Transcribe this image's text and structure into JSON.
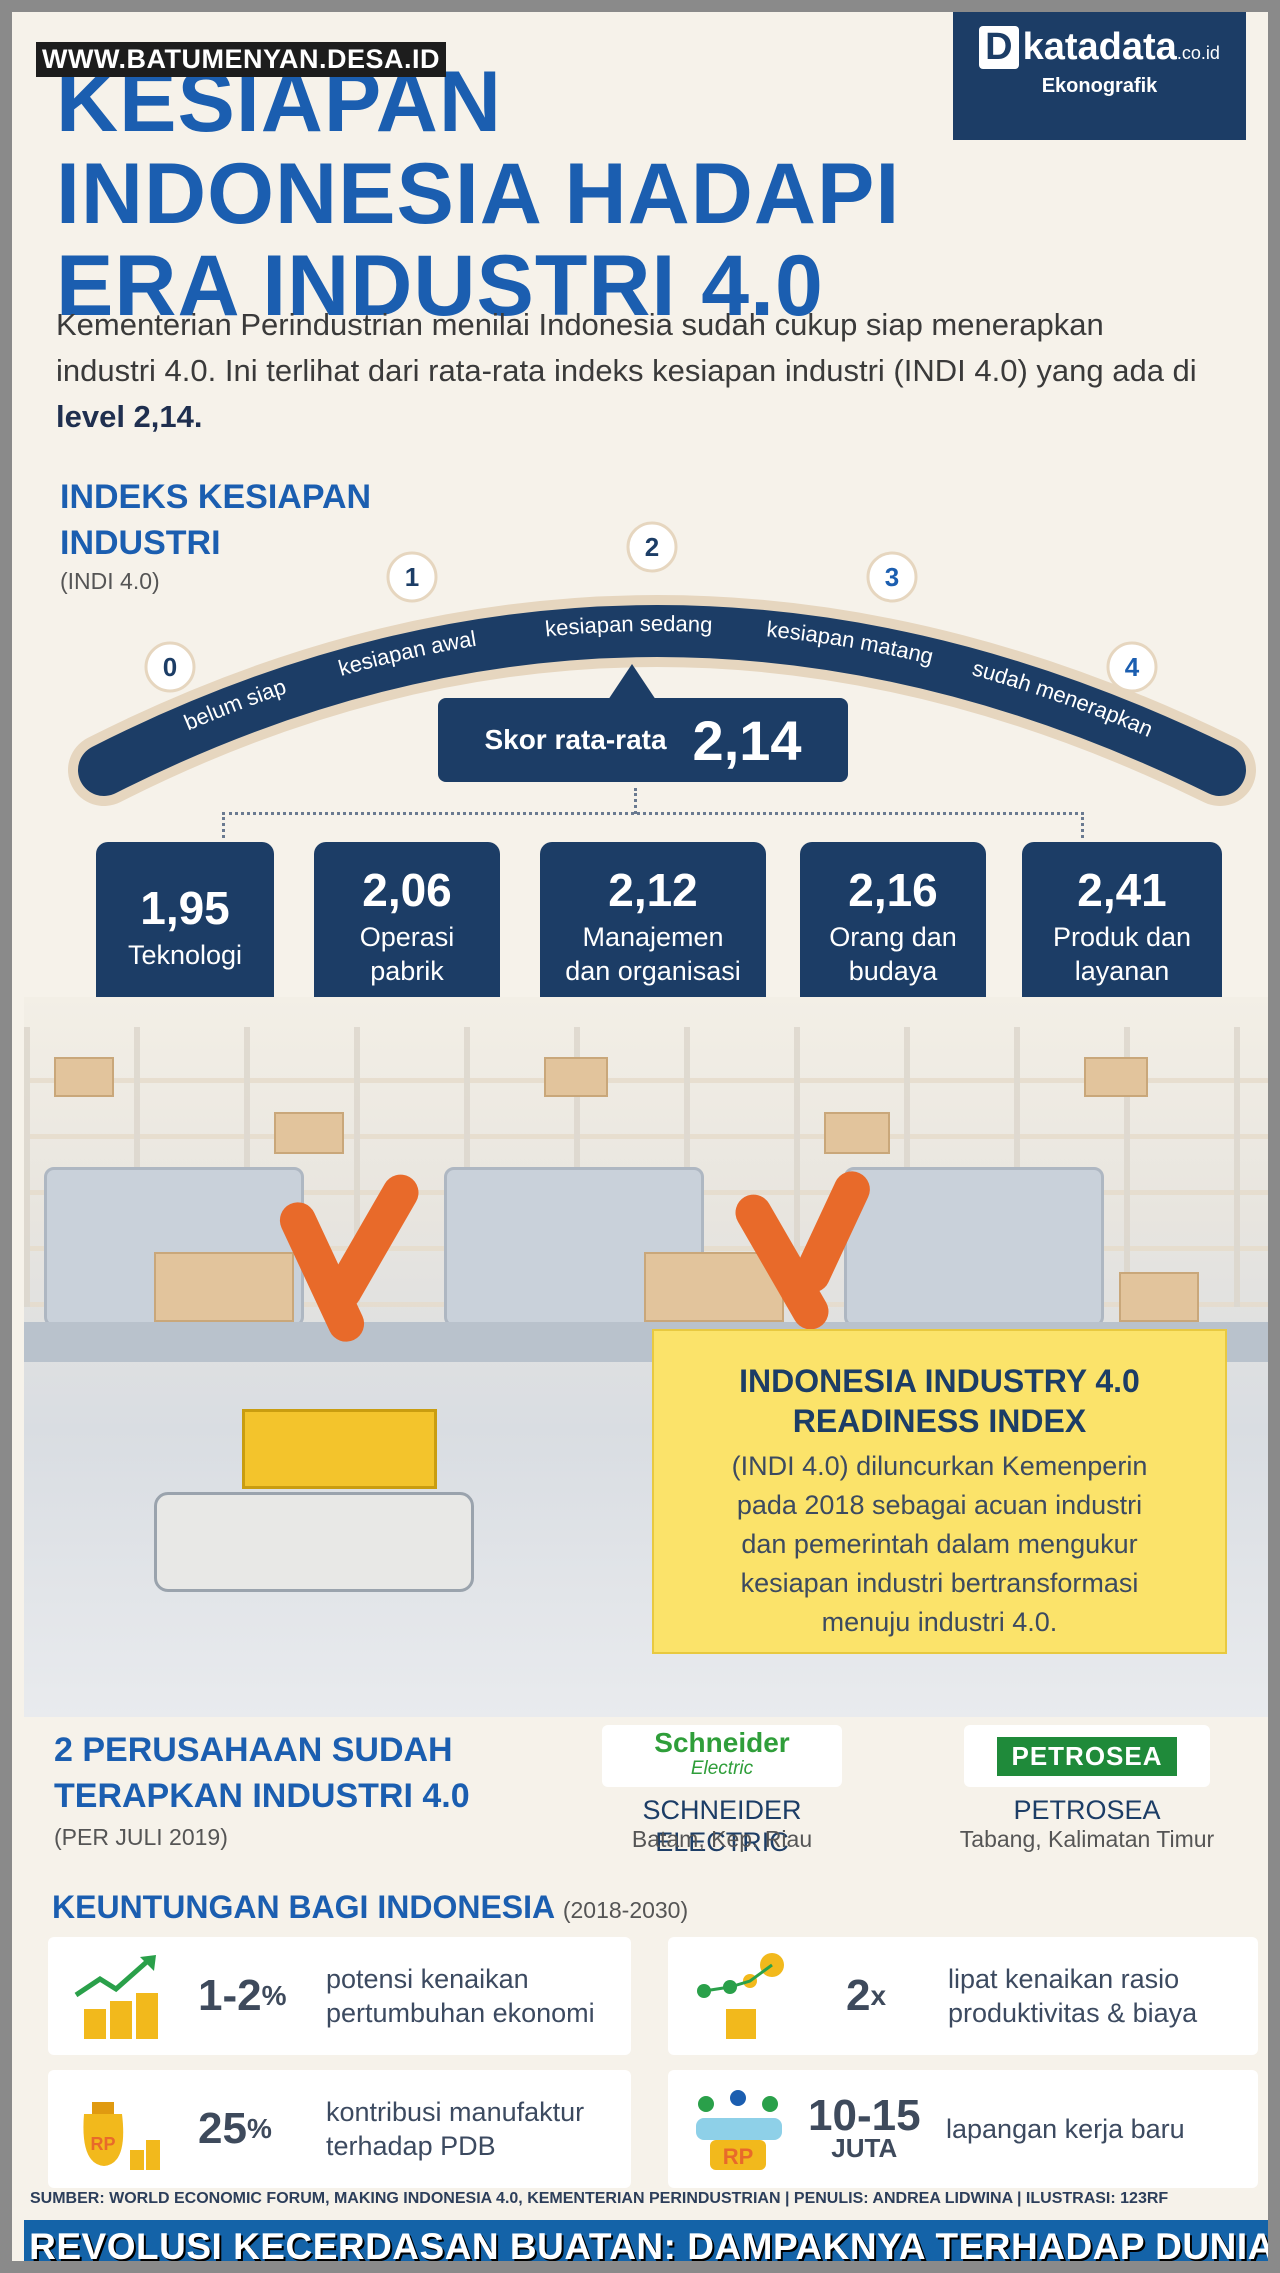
{
  "watermark": "WWW.BATUMENYAN.DESA.ID",
  "brand": {
    "logo": "katadata",
    "domain": ".co.id",
    "sub": "Ekonografik"
  },
  "title": [
    "KESIAPAN",
    "INDONESIA HADAPI",
    "ERA INDUSTRI 4.0"
  ],
  "intro": {
    "text": "Kementerian Perindustrian menilai Indonesia sudah cukup siap menerapkan industri 4.0. Ini terlihat dari rata-rata indeks kesiapan industri (INDI 4.0) yang ada di ",
    "highlight": "level 2,14."
  },
  "index": {
    "title": [
      "INDEKS KESIAPAN",
      "INDUSTRI"
    ],
    "subtitle": "(INDI 4.0)",
    "scale": [
      "0",
      "1",
      "2",
      "3",
      "4"
    ],
    "levels": [
      "belum siap",
      "kesiapan awal",
      "kesiapan sedang",
      "kesiapan matang",
      "sudah menerapkan"
    ],
    "score_label": "Skor rata-rata",
    "score_value": "2,14"
  },
  "cards": [
    {
      "value": "1,95",
      "label": [
        "Teknologi"
      ]
    },
    {
      "value": "2,06",
      "label": [
        "Operasi",
        "pabrik"
      ]
    },
    {
      "value": "2,12",
      "label": [
        "Manajemen",
        "dan organisasi"
      ]
    },
    {
      "value": "2,16",
      "label": [
        "Orang dan",
        "budaya"
      ]
    },
    {
      "value": "2,41",
      "label": [
        "Produk dan",
        "layanan"
      ]
    }
  ],
  "info": {
    "title": [
      "INDONESIA INDUSTRY 4.0",
      "READINESS INDEX"
    ],
    "body": [
      "(INDI 4.0) diluncurkan Kemenperin",
      "pada 2018 sebagai acuan industri",
      "dan pemerintah dalam mengukur",
      "kesiapan industri bertransformasi",
      "menuju industri 4.0."
    ]
  },
  "companies": {
    "title": [
      "2 PERUSAHAAN SUDAH",
      "TERAPKAN INDUSTRI 4.0"
    ],
    "subtitle": "(PER JULI 2019)",
    "items": [
      {
        "logo": "Schneider",
        "logo_sub": "Electric",
        "name": "SCHNEIDER ELECTRIC",
        "location": "Batam, Kep. Riau"
      },
      {
        "logo": "PETROSEA",
        "logo_sub": "",
        "name": "PETROSEA",
        "location": "Tabang, Kalimatan Timur"
      }
    ]
  },
  "benefits": {
    "title": "KEUNTUNGAN BAGI INDONESIA",
    "period": "(2018-2030)",
    "items": [
      {
        "value": "1-2",
        "unit": "%",
        "text": [
          "potensi kenaikan",
          "pertumbuhan ekonomi"
        ],
        "icon": "growth-chart-coins-icon"
      },
      {
        "value": "2",
        "unit": "x",
        "text": [
          "lipat kenaikan rasio",
          "produktivitas & biaya"
        ],
        "icon": "productivity-coins-icon"
      },
      {
        "value": "25",
        "unit": "%",
        "text": [
          "kontribusi manufaktur",
          "terhadap PDB"
        ],
        "icon": "money-bag-icon"
      },
      {
        "value": "10-15",
        "unit": "JUTA",
        "text": [
          "lapangan kerja baru"
        ],
        "icon": "jobs-people-icon",
        "rp": "RP"
      }
    ]
  },
  "sources": "SUMBER: WORLD ECONOMIC FORUM, MAKING INDONESIA 4.0, KEMENTERIAN PERINDUSTRIAN | PENULIS: ANDREA LIDWINA | ILUSTRASI: 123RF",
  "footer": "REVOLUSI KECERDASAN BUATAN: DAMPAKNYA TERHADAP DUNIA EKONOMI",
  "colors": {
    "navy": "#1c3d66",
    "blue": "#1b5eb0",
    "yellow": "#fbe36a",
    "footer": "#1463a8"
  }
}
